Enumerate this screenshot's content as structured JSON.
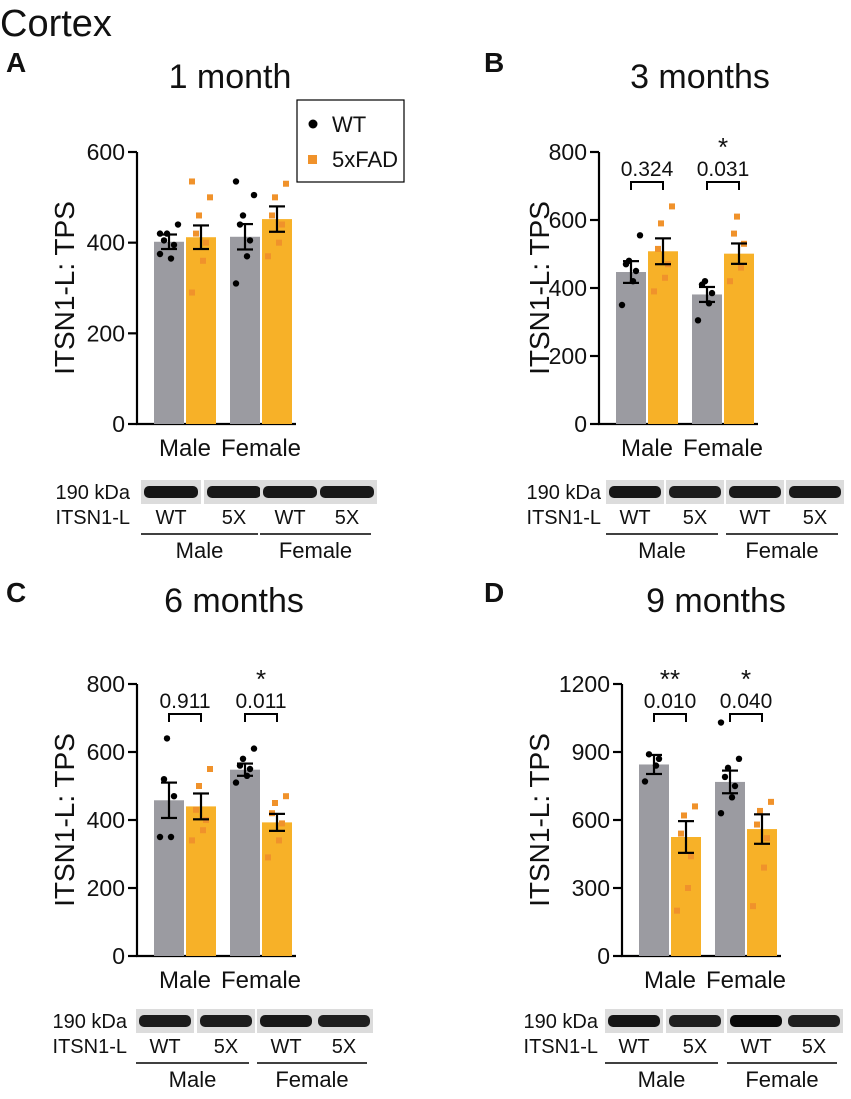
{
  "figure_title": "Cortex",
  "legend": [
    {
      "name": "WT",
      "color": "#9b9ba1",
      "point_color": "#000000"
    },
    {
      "name": "5xFAD",
      "color": "#f7b128",
      "point_color": "#f0922b"
    }
  ],
  "chart_data": [
    {
      "panel": "A",
      "type": "bar",
      "title": "1 month",
      "ylabel": "ITSN1-L: TPS",
      "ylim": [
        0,
        600
      ],
      "yticks": [
        0,
        200,
        400,
        600
      ],
      "categories": [
        "Male",
        "Female"
      ],
      "series": [
        {
          "name": "WT",
          "values": [
            402,
            413
          ],
          "sem": [
            16,
            28
          ],
          "points": [
            [
              375,
              365,
              395,
              405,
              420,
              440,
              420
            ],
            [
              310,
              370,
              405,
              440,
              460,
              505,
              535
            ]
          ]
        },
        {
          "name": "5xFAD",
          "values": [
            412,
            452
          ],
          "sem": [
            26,
            28
          ],
          "points": [
            [
              290,
              360,
              400,
              420,
              460,
              500,
              535
            ],
            [
              370,
              400,
              440,
              460,
              500,
              530
            ]
          ]
        }
      ],
      "annotations": [],
      "blot": {
        "kda": "190 kDa",
        "protein": "ITSN1-L",
        "lanes": [
          "WT",
          "5X",
          "WT",
          "5X"
        ],
        "groups": [
          "Male",
          "Female"
        ],
        "intensity": [
          0.85,
          0.8,
          0.8,
          0.8
        ]
      }
    },
    {
      "panel": "B",
      "type": "bar",
      "title": "3 months",
      "ylabel": "ITSN1-L: TPS",
      "ylim": [
        0,
        800
      ],
      "yticks": [
        0,
        200,
        400,
        600,
        800
      ],
      "categories": [
        "Male",
        "Female"
      ],
      "series": [
        {
          "name": "WT",
          "values": [
            447,
            381
          ],
          "sem": [
            32,
            22
          ],
          "points": [
            [
              350,
              420,
              450,
              470,
              480,
              555
            ],
            [
              305,
              355,
              385,
              410,
              420
            ]
          ]
        },
        {
          "name": "5xFAD",
          "values": [
            508,
            501
          ],
          "sem": [
            38,
            30
          ],
          "points": [
            [
              390,
              430,
              470,
              515,
              590,
              640
            ],
            [
              420,
              460,
              530,
              560,
              610
            ]
          ]
        }
      ],
      "annotations": [
        {
          "category": "Male",
          "p": "0.324",
          "star": ""
        },
        {
          "category": "Female",
          "p": "0.031",
          "star": "*"
        }
      ],
      "blot": {
        "kda": "190 kDa",
        "protein": "ITSN1-L",
        "lanes": [
          "WT",
          "5X",
          "WT",
          "5X"
        ],
        "groups": [
          "Male",
          "Female"
        ],
        "intensity": [
          0.85,
          0.75,
          0.8,
          0.8
        ]
      }
    },
    {
      "panel": "C",
      "type": "bar",
      "title": "6 months",
      "ylabel": "ITSN1-L: TPS",
      "ylim": [
        0,
        800
      ],
      "yticks": [
        0,
        200,
        400,
        600,
        800
      ],
      "categories": [
        "Male",
        "Female"
      ],
      "series": [
        {
          "name": "WT",
          "values": [
            458,
            548
          ],
          "sem": [
            52,
            18
          ],
          "points": [
            [
              350,
              350,
              470,
              520,
              640
            ],
            [
              510,
              530,
              550,
              560,
              580,
              610
            ]
          ]
        },
        {
          "name": "5xFAD",
          "values": [
            440,
            393
          ],
          "sem": [
            38,
            25
          ],
          "points": [
            [
              340,
              370,
              400,
              430,
              500,
              550
            ],
            [
              290,
              340,
              390,
              420,
              450,
              470
            ]
          ]
        }
      ],
      "annotations": [
        {
          "category": "Male",
          "p": "0.911",
          "star": ""
        },
        {
          "category": "Female",
          "p": "0.011",
          "star": "*"
        }
      ],
      "blot": {
        "kda": "190 kDa",
        "protein": "ITSN1-L",
        "lanes": [
          "WT",
          "5X",
          "WT",
          "5X"
        ],
        "groups": [
          "Male",
          "Female"
        ],
        "intensity": [
          0.75,
          0.75,
          0.8,
          0.7
        ]
      }
    },
    {
      "panel": "D",
      "type": "bar",
      "title": "9 months",
      "ylabel": "ITSN1-L: TPS",
      "ylim": [
        0,
        1200
      ],
      "yticks": [
        0,
        300,
        600,
        900,
        1200
      ],
      "categories": [
        "Male",
        "Female"
      ],
      "series": [
        {
          "name": "WT",
          "values": [
            845,
            768
          ],
          "sem": [
            42,
            50
          ],
          "points": [
            [
              770,
              840,
              870,
              890
            ],
            [
              630,
              700,
              750,
              790,
              830,
              870,
              1030
            ]
          ]
        },
        {
          "name": "5xFAD",
          "values": [
            525,
            560
          ],
          "sem": [
            70,
            65
          ],
          "points": [
            [
              200,
              300,
              440,
              540,
              620,
              660
            ],
            [
              220,
              390,
              520,
              580,
              640,
              680
            ]
          ]
        }
      ],
      "annotations": [
        {
          "category": "Male",
          "p": "0.010",
          "star": "**"
        },
        {
          "category": "Female",
          "p": "0.040",
          "star": "*"
        }
      ],
      "blot": {
        "kda": "190 kDa",
        "protein": "ITSN1-L",
        "lanes": [
          "WT",
          "5X",
          "WT",
          "5X"
        ],
        "groups": [
          "Male",
          "Female"
        ],
        "intensity": [
          0.85,
          0.7,
          1.0,
          0.7
        ]
      }
    }
  ]
}
